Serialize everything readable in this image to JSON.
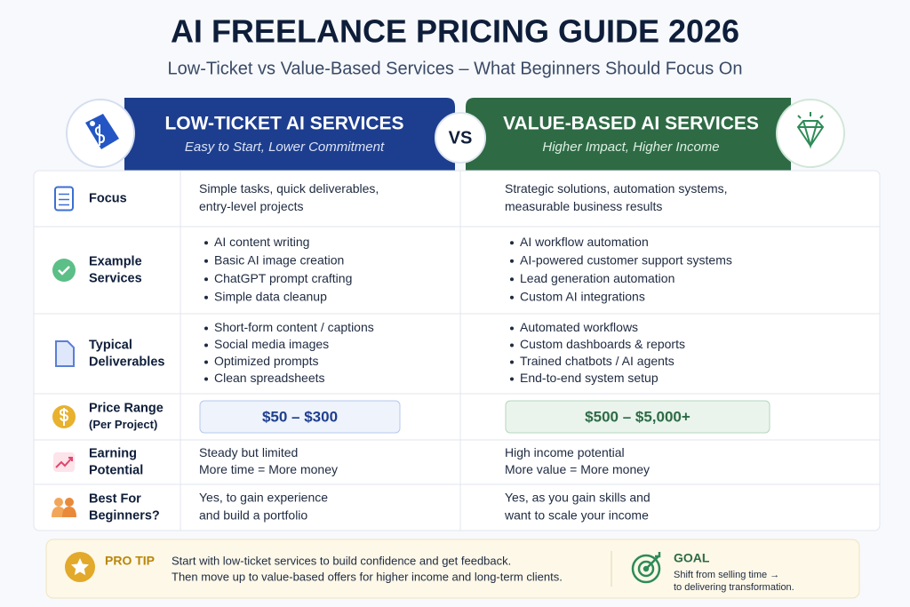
{
  "header": {
    "title": "AI FREELANCE PRICING GUIDE 2026",
    "subtitle": "Low-Ticket vs Value-Based Services – What Beginners Should Focus On"
  },
  "columns": {
    "left": {
      "title": "LOW-TICKET AI SERVICES",
      "subtitle": "Easy to Start, Lower Commitment"
    },
    "vs": "VS",
    "right": {
      "title": "VALUE-BASED AI SERVICES",
      "subtitle": "Higher Impact, Higher Income"
    }
  },
  "rows": [
    {
      "label": [
        "Focus"
      ],
      "left": {
        "lines": [
          "Simple tasks, quick deliverables,",
          "entry-level projects"
        ]
      },
      "right": {
        "lines": [
          "Strategic solutions, automation systems,",
          "measurable business results"
        ]
      }
    },
    {
      "label": [
        "Example",
        "Services"
      ],
      "left": {
        "bullets": [
          "AI content writing",
          "Basic AI image creation",
          "ChatGPT prompt crafting",
          "Simple data cleanup"
        ]
      },
      "right": {
        "bullets": [
          "AI workflow automation",
          "AI-powered customer support systems",
          "Lead generation automation",
          "Custom AI integrations"
        ]
      }
    },
    {
      "label": [
        "Typical",
        "Deliverables"
      ],
      "left": {
        "bullets": [
          "Short-form content / captions",
          "Social media images",
          "Optimized prompts",
          "Clean spreadsheets"
        ]
      },
      "right": {
        "bullets": [
          "Automated workflows",
          "Custom dashboards & reports",
          "Trained chatbots / AI agents",
          "End-to-end system setup"
        ]
      }
    },
    {
      "label": [
        "Price Range",
        "(Per Project)"
      ],
      "left": {
        "price": "$50 – $300"
      },
      "right": {
        "price": "$500 – $5,000+"
      }
    },
    {
      "label": [
        "Earning",
        "Potential"
      ],
      "left": {
        "lines": [
          "Steady but limited",
          "More time = More money"
        ]
      },
      "right": {
        "lines": [
          "High income potential",
          "More value = More money"
        ]
      }
    },
    {
      "label": [
        "Best For",
        "Beginners?"
      ],
      "left": {
        "lines": [
          "Yes, to gain experience",
          "and build a portfolio"
        ]
      },
      "right": {
        "lines": [
          "Yes, as you gain skills and",
          "want to scale your income"
        ]
      }
    }
  ],
  "tip": {
    "label": "PRO TIP",
    "lines": [
      "Start with low-ticket services to build confidence and get feedback.",
      "Then move up to value-based offers for higher income and long-term clients."
    ]
  },
  "goal": {
    "label": "GOAL",
    "lines": [
      "Shift from selling time →",
      "to delivering transformation."
    ]
  }
}
